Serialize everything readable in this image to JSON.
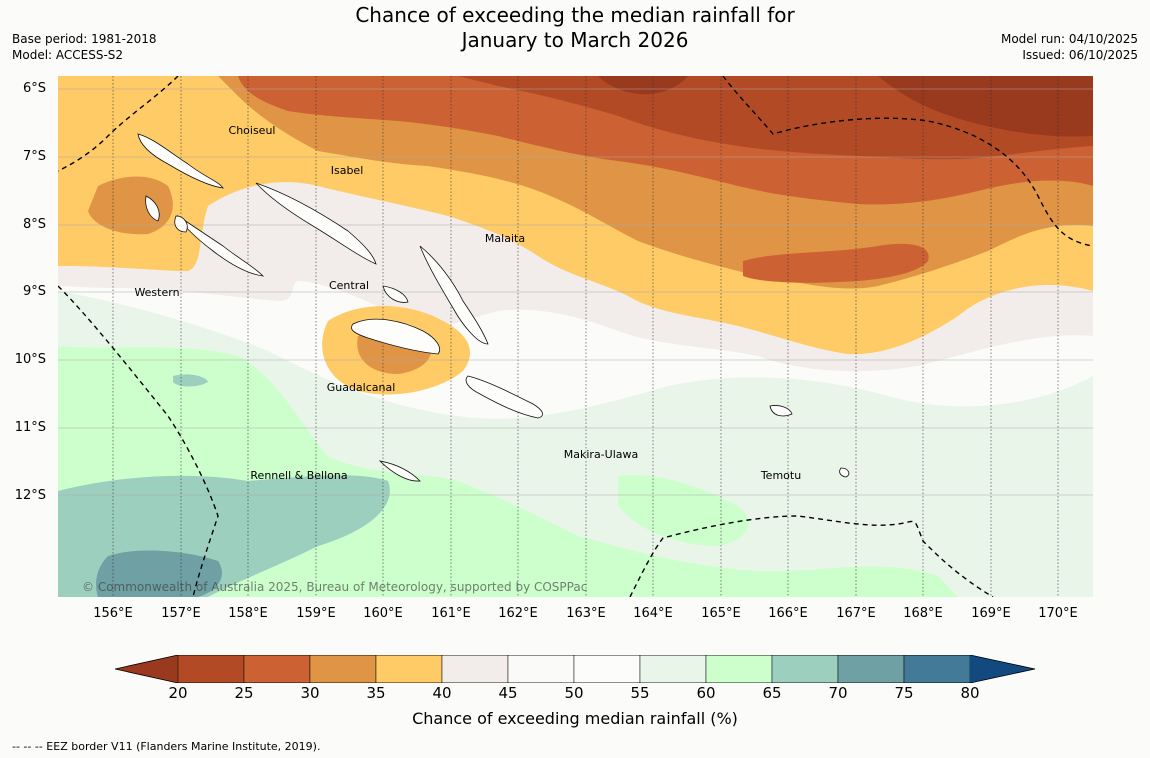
{
  "title": {
    "line1": "Chance of exceeding the median rainfall for",
    "line2": "January to March 2026"
  },
  "meta": {
    "base_period": "Base period: 1981-2018",
    "model": "Model: ACCESS-S2",
    "model_run": "Model run: 04/10/2025",
    "issued": "Issued: 06/10/2025"
  },
  "map": {
    "lat_labels": [
      "6°S",
      "7°S",
      "8°S",
      "9°S",
      "10°S",
      "11°S",
      "12°S"
    ],
    "lon_labels": [
      "156°E",
      "157°E",
      "158°E",
      "159°E",
      "160°E",
      "161°E",
      "162°E",
      "163°E",
      "164°E",
      "165°E",
      "166°E",
      "167°E",
      "168°E",
      "169°E",
      "170°E"
    ],
    "places": [
      "Choiseul",
      "Isabel",
      "Malaita",
      "Central",
      "Western",
      "Guadalcanal",
      "Makira-Ulawa",
      "Temotu",
      "Rennell & Bellona"
    ],
    "copyright": "© Commonwealth of Australia 2025, Bureau of Meteorology, supported by COSPPac"
  },
  "colorbar": {
    "ticks": [
      "20",
      "25",
      "30",
      "35",
      "40",
      "45",
      "50",
      "55",
      "60",
      "65",
      "70",
      "75",
      "80"
    ],
    "colors": [
      "#99391e",
      "#b34a26",
      "#cc6233",
      "#e09445",
      "#fecb66",
      "#f2edea",
      "#fafbf9",
      "#fcfcfb",
      "#eaf5ea",
      "#ccffcc",
      "#9ccfbd",
      "#6fa0a3",
      "#427a97",
      "#124a7f"
    ],
    "label": "Chance of exceeding median rainfall (%)"
  },
  "footnote": "--  --  -- EEZ border V11 (Flanders Marine Institute, 2019)."
}
